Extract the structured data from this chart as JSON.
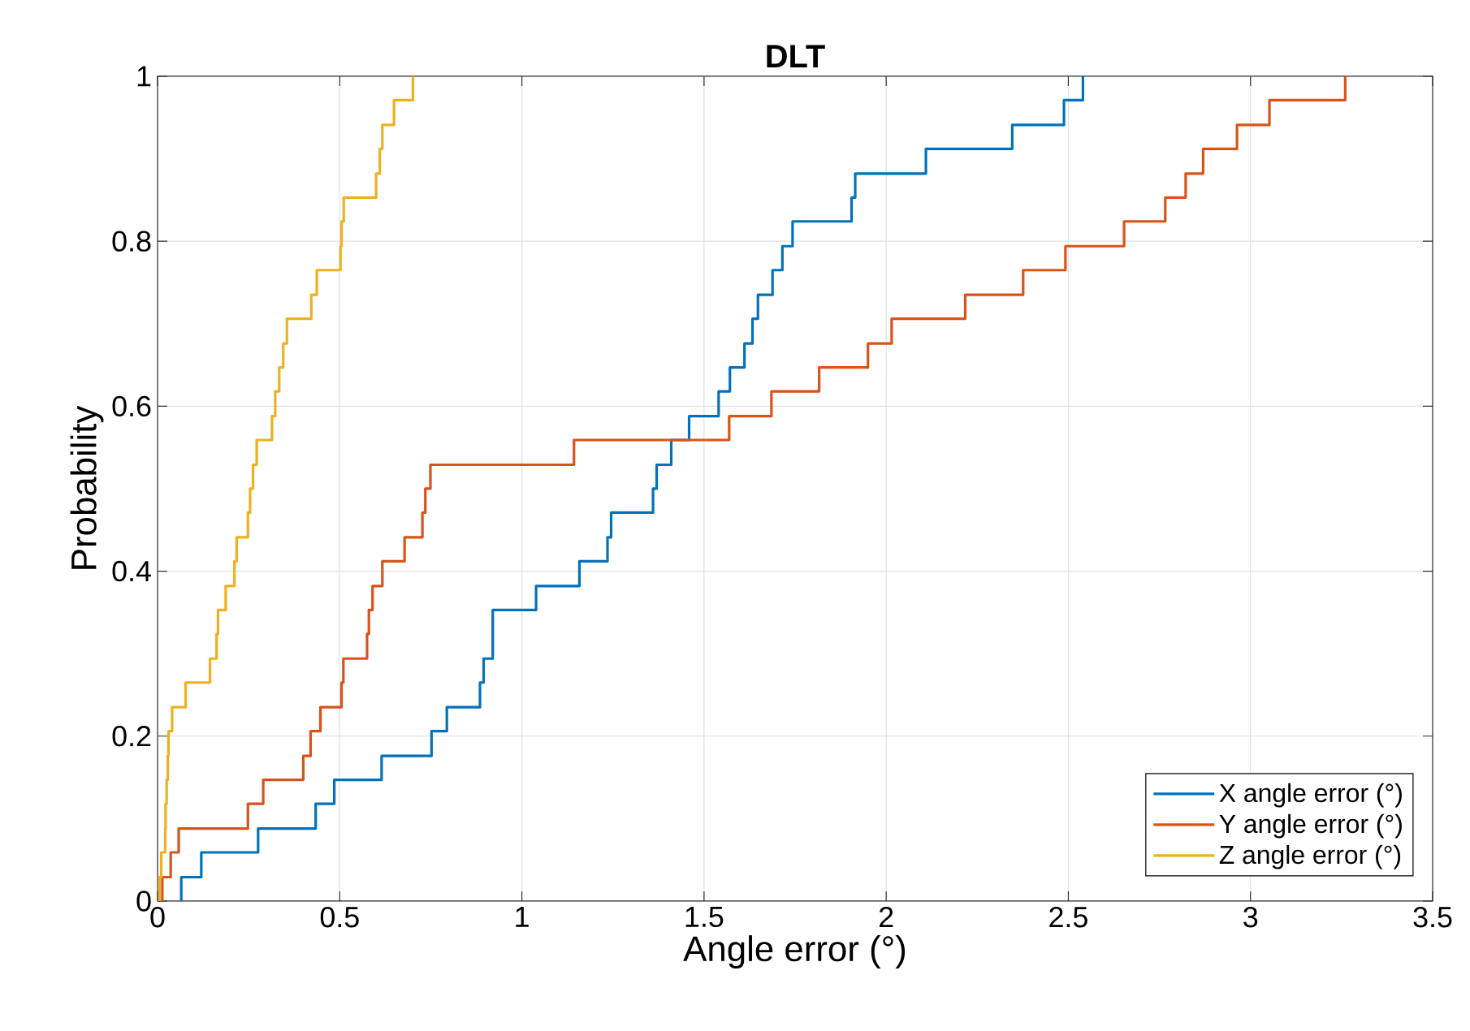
{
  "chart_data": {
    "type": "step",
    "title": "DLT",
    "xlabel": "Angle error (°)",
    "ylabel": "Probability",
    "xlim": [
      0,
      3.5
    ],
    "ylim": [
      0,
      1
    ],
    "xticks": [
      0,
      0.5,
      1,
      1.5,
      2,
      2.5,
      3,
      3.5
    ],
    "yticks": [
      0,
      0.2,
      0.4,
      0.6,
      0.8,
      1
    ],
    "grid": true,
    "legend": "bottom right",
    "series": [
      {
        "name": "X angle error (°)",
        "color": "#0072bd",
        "x": [
          0.065,
          0.065,
          0.12,
          0.276,
          0.434,
          0.485,
          0.615,
          0.752,
          0.794,
          0.885,
          0.895,
          0.92,
          1.039,
          1.158,
          1.235,
          1.245,
          1.36,
          1.37,
          1.41,
          1.459,
          1.54,
          1.571,
          1.611,
          1.633,
          1.648,
          1.688,
          1.715,
          1.743,
          1.905,
          1.915,
          2.109,
          2.346,
          2.488,
          2.54
        ],
        "values": [
          0,
          0.029,
          0.059,
          0.088,
          0.118,
          0.147,
          0.176,
          0.206,
          0.235,
          0.265,
          0.294,
          0.353,
          0.382,
          0.412,
          0.441,
          0.471,
          0.5,
          0.529,
          0.559,
          0.588,
          0.618,
          0.647,
          0.676,
          0.706,
          0.735,
          0.765,
          0.794,
          0.824,
          0.853,
          0.882,
          0.912,
          0.941,
          0.971,
          1
        ]
      },
      {
        "name": "Y angle error (°)",
        "color": "#d95319",
        "x": [
          0.013,
          0.013,
          0.036,
          0.058,
          0.248,
          0.29,
          0.4,
          0.42,
          0.447,
          0.505,
          0.51,
          0.575,
          0.58,
          0.59,
          0.617,
          0.678,
          0.727,
          0.735,
          0.749,
          1.143,
          1.569,
          1.685,
          1.816,
          1.95,
          2.015,
          2.217,
          2.376,
          2.492,
          2.653,
          2.766,
          2.822,
          2.87,
          2.963,
          3.052,
          3.26
        ],
        "values": [
          0,
          0.029,
          0.059,
          0.088,
          0.118,
          0.147,
          0.176,
          0.206,
          0.235,
          0.265,
          0.294,
          0.324,
          0.353,
          0.382,
          0.412,
          0.441,
          0.471,
          0.5,
          0.529,
          0.559,
          0.588,
          0.618,
          0.647,
          0.676,
          0.706,
          0.735,
          0.765,
          0.794,
          0.824,
          0.853,
          0.882,
          0.912,
          0.941,
          0.971,
          1
        ]
      },
      {
        "name": "Z angle error (°)",
        "color": "#edb120",
        "x": [
          0.005,
          0.005,
          0.01,
          0.021,
          0.022,
          0.025,
          0.028,
          0.03,
          0.04,
          0.077,
          0.144,
          0.162,
          0.166,
          0.187,
          0.211,
          0.217,
          0.248,
          0.254,
          0.262,
          0.272,
          0.314,
          0.323,
          0.334,
          0.345,
          0.355,
          0.422,
          0.437,
          0.502,
          0.505,
          0.511,
          0.6,
          0.61,
          0.617,
          0.649,
          0.701
        ],
        "values": [
          0,
          0.029,
          0.059,
          0.088,
          0.118,
          0.147,
          0.176,
          0.206,
          0.235,
          0.265,
          0.294,
          0.324,
          0.353,
          0.382,
          0.412,
          0.441,
          0.471,
          0.5,
          0.529,
          0.559,
          0.588,
          0.618,
          0.647,
          0.676,
          0.706,
          0.735,
          0.765,
          0.794,
          0.824,
          0.853,
          0.882,
          0.912,
          0.941,
          0.971,
          1
        ]
      }
    ]
  }
}
